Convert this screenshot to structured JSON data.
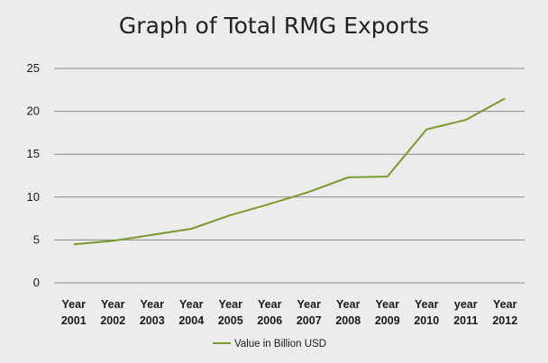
{
  "chart_data": {
    "type": "line",
    "title": "Graph of Total RMG Exports",
    "categories": [
      "Year\n2001",
      "Year\n2002",
      "Year\n2003",
      "Year\n2004",
      "Year\n2005",
      "Year\n2006",
      "Year\n2007",
      "Year\n2008",
      "Year\n2009",
      "Year\n2010",
      "year\n2011",
      "Year\n2012"
    ],
    "series": [
      {
        "name": "Value in Billion USD",
        "color": "#7a9a2e",
        "values": [
          4.5,
          4.9,
          5.6,
          6.3,
          7.9,
          9.2,
          10.6,
          12.3,
          12.4,
          17.9,
          19.0,
          21.5
        ]
      }
    ],
    "ylim": [
      0,
      25
    ],
    "yticks": [
      0,
      5,
      10,
      15,
      20,
      25
    ],
    "grid": true,
    "legend_position": "bottom-center"
  }
}
